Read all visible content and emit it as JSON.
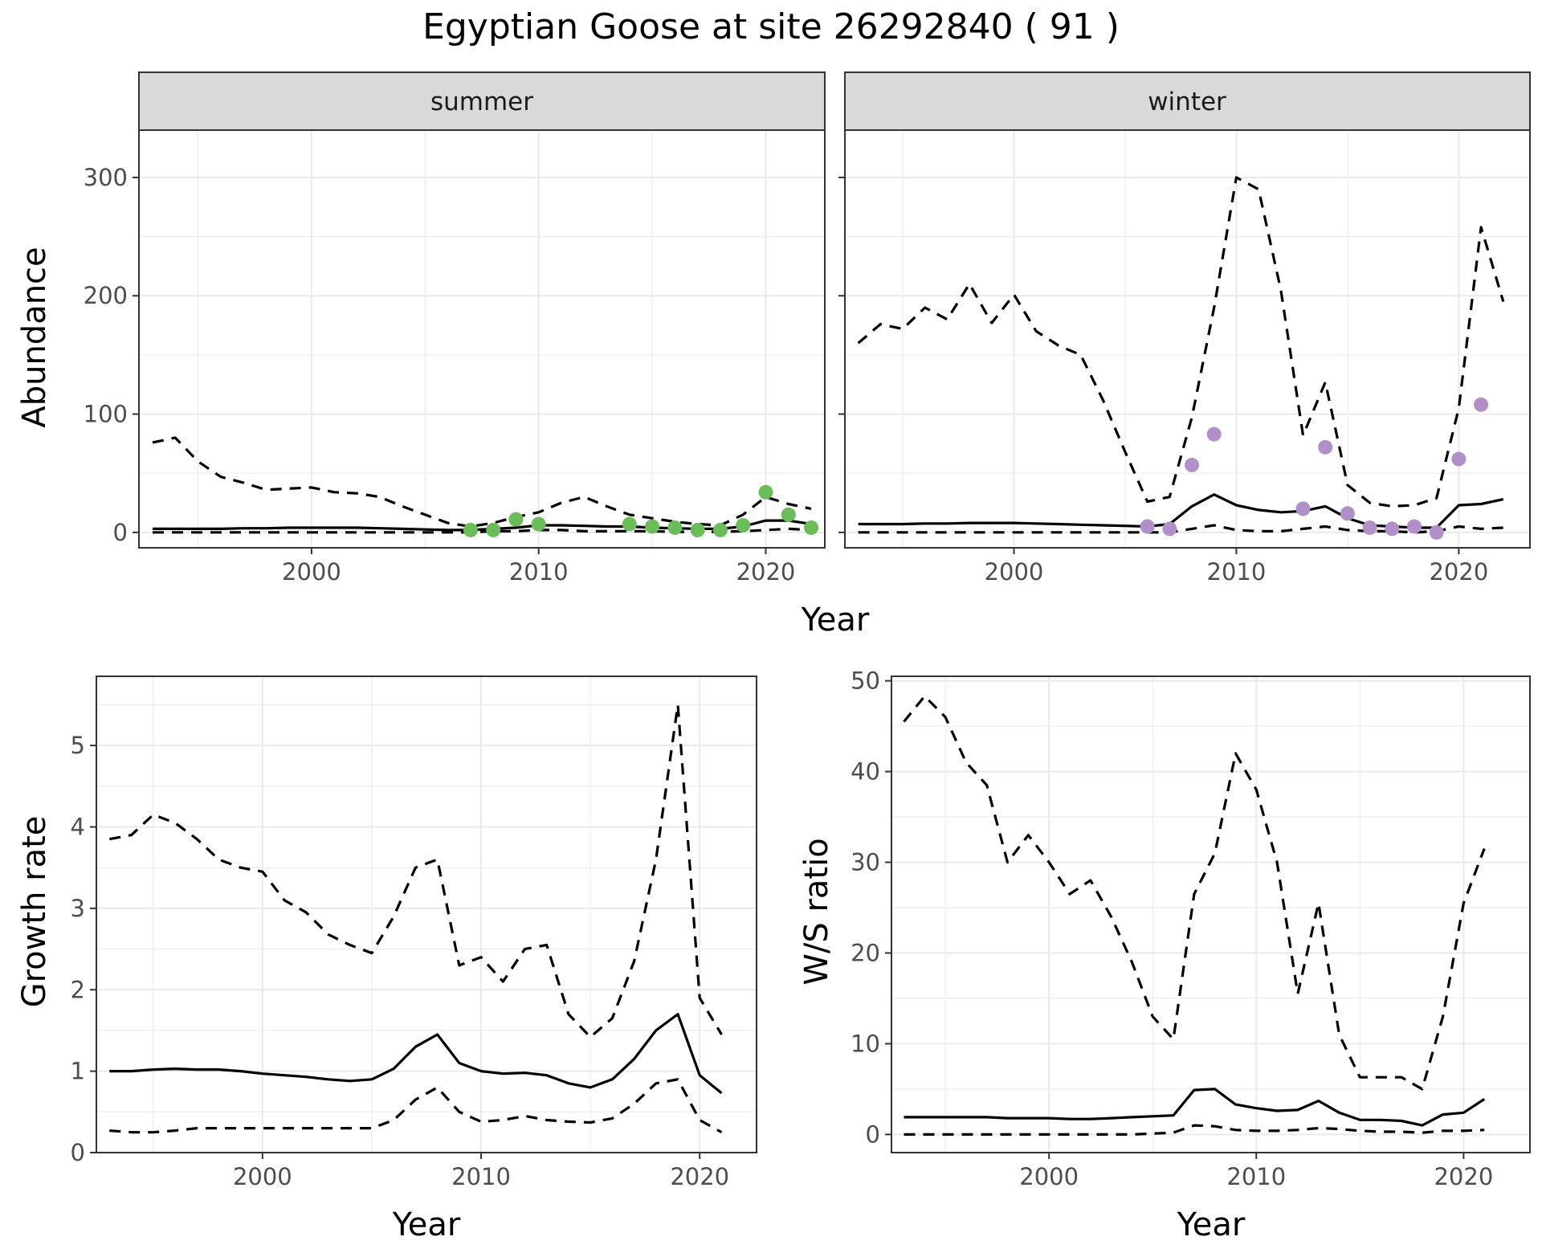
{
  "title": "Egyptian Goose at site 26292840 ( 91 )",
  "chart_data": [
    {
      "type": "line",
      "panel": "summer",
      "strip_label": "summer",
      "xlabel": "",
      "ylabel": "Abundance",
      "xlim": [
        1992.4,
        2022.6
      ],
      "ylim": [
        -13,
        340
      ],
      "xticks": [
        2000,
        2010,
        2020
      ],
      "yticks": [
        0,
        100,
        200,
        300
      ],
      "grid": true,
      "point_color": "#6bbd57",
      "x": [
        1993,
        1994,
        1995,
        1996,
        1997,
        1998,
        1999,
        2000,
        2001,
        2002,
        2003,
        2004,
        2005,
        2006,
        2007,
        2008,
        2009,
        2010,
        2011,
        2012,
        2013,
        2014,
        2015,
        2016,
        2017,
        2018,
        2019,
        2020,
        2021,
        2022
      ],
      "series": [
        {
          "values": [
            3,
            3,
            3,
            3,
            3.5,
            3.5,
            4,
            4,
            4,
            4,
            3.5,
            3,
            2.5,
            2,
            2,
            3,
            4,
            6,
            6,
            5.5,
            5,
            5,
            4,
            3.5,
            3,
            3,
            5,
            10,
            10,
            7
          ]
        },
        {
          "values": [
            76,
            80,
            60,
            47,
            42,
            36,
            37,
            38,
            34,
            33,
            30,
            22,
            15,
            8,
            5,
            8,
            13,
            17,
            25,
            30,
            22,
            15,
            12,
            9,
            7,
            6,
            15,
            30,
            24,
            20
          ]
        },
        {
          "values": [
            0,
            0,
            0,
            0,
            0,
            0,
            0,
            0,
            0,
            0,
            0,
            0,
            0,
            0,
            0,
            1,
            1,
            2,
            2,
            1,
            1,
            1,
            1,
            0.5,
            0.5,
            0.5,
            1,
            2,
            3,
            2
          ]
        }
      ],
      "points": {
        "x": [
          2007,
          2008,
          2009,
          2010,
          2014,
          2015,
          2016,
          2017,
          2018,
          2019,
          2020,
          2021,
          2022
        ],
        "y": [
          2,
          2,
          11,
          7,
          7,
          5,
          4,
          2,
          2,
          6,
          34,
          15,
          4
        ]
      }
    },
    {
      "type": "line",
      "panel": "winter",
      "strip_label": "winter",
      "xlabel": "",
      "ylabel": "",
      "xlim": [
        1992.4,
        2023.2
      ],
      "ylim": [
        -13,
        340
      ],
      "xticks": [
        2000,
        2010,
        2020
      ],
      "yticks": [
        0,
        100,
        200,
        300
      ],
      "grid": true,
      "point_color": "#b18fc8",
      "x": [
        1993,
        1994,
        1995,
        1996,
        1997,
        1998,
        1999,
        2000,
        2001,
        2002,
        2003,
        2004,
        2005,
        2006,
        2007,
        2008,
        2009,
        2010,
        2011,
        2012,
        2013,
        2014,
        2015,
        2016,
        2017,
        2018,
        2019,
        2020,
        2021,
        2022
      ],
      "series": [
        {
          "values": [
            7,
            7,
            7,
            7.5,
            7.5,
            8,
            8,
            8,
            7.5,
            7,
            6.5,
            6,
            5.5,
            5,
            7,
            22,
            32,
            23,
            19,
            17,
            18,
            22,
            12,
            6,
            5,
            4,
            4,
            23,
            24,
            28
          ]
        },
        {
          "values": [
            160,
            176,
            172,
            190,
            180,
            210,
            177,
            201,
            170,
            158,
            150,
            112,
            68,
            26,
            30,
            97,
            190,
            300,
            290,
            205,
            82,
            127,
            40,
            25,
            22,
            23,
            29,
            105,
            258,
            195
          ]
        },
        {
          "values": [
            0,
            0,
            0,
            0,
            0,
            0,
            0,
            0,
            0,
            0,
            0,
            0,
            0,
            0,
            0,
            3,
            6,
            2,
            1,
            1,
            3,
            5,
            2,
            1,
            1,
            0,
            1,
            5,
            3,
            4
          ]
        }
      ],
      "points": {
        "x": [
          2006,
          2007,
          2008,
          2009,
          2013,
          2014,
          2015,
          2016,
          2017,
          2018,
          2019,
          2020,
          2021
        ],
        "y": [
          5,
          3,
          57,
          83,
          20,
          72,
          16,
          4,
          3,
          5,
          0,
          62,
          108
        ]
      }
    },
    {
      "type": "line",
      "panel": "growth",
      "xlabel": "Year",
      "ylabel": "Growth rate",
      "xlim": [
        1992.4,
        2022.6
      ],
      "ylim": [
        0,
        5.85
      ],
      "xticks": [
        2000,
        2010,
        2020
      ],
      "yticks": [
        0,
        1,
        2,
        3,
        4,
        5
      ],
      "grid": true,
      "x": [
        1993,
        1994,
        1995,
        1996,
        1997,
        1998,
        1999,
        2000,
        2001,
        2002,
        2003,
        2004,
        2005,
        2006,
        2007,
        2008,
        2009,
        2010,
        2011,
        2012,
        2013,
        2014,
        2015,
        2016,
        2017,
        2018,
        2019,
        2020,
        2021
      ],
      "series": [
        {
          "values": [
            1.0,
            1.0,
            1.02,
            1.03,
            1.02,
            1.02,
            1.0,
            0.97,
            0.95,
            0.93,
            0.9,
            0.88,
            0.9,
            1.03,
            1.3,
            1.45,
            1.1,
            1.0,
            0.97,
            0.98,
            0.95,
            0.85,
            0.8,
            0.9,
            1.15,
            1.5,
            1.7,
            0.95,
            0.73
          ]
        },
        {
          "values": [
            3.85,
            3.9,
            4.15,
            4.05,
            3.85,
            3.6,
            3.5,
            3.45,
            3.1,
            2.95,
            2.68,
            2.55,
            2.45,
            2.9,
            3.5,
            3.6,
            2.3,
            2.4,
            2.1,
            2.5,
            2.55,
            1.7,
            1.42,
            1.65,
            2.35,
            3.6,
            5.5,
            1.9,
            1.45
          ]
        },
        {
          "values": [
            0.27,
            0.25,
            0.25,
            0.27,
            0.3,
            0.3,
            0.3,
            0.3,
            0.3,
            0.3,
            0.3,
            0.3,
            0.3,
            0.4,
            0.65,
            0.8,
            0.5,
            0.38,
            0.4,
            0.45,
            0.4,
            0.38,
            0.37,
            0.42,
            0.6,
            0.85,
            0.9,
            0.4,
            0.25
          ]
        }
      ]
    },
    {
      "type": "line",
      "panel": "ratio",
      "xlabel": "Year",
      "ylabel": "W/S ratio",
      "xlim": [
        1992.4,
        2023.2
      ],
      "ylim": [
        -2,
        50.5
      ],
      "xticks": [
        2000,
        2010,
        2020
      ],
      "yticks": [
        0,
        10,
        20,
        30,
        40,
        50
      ],
      "grid": true,
      "x": [
        1993,
        1994,
        1995,
        1996,
        1997,
        1998,
        1999,
        2000,
        2001,
        2002,
        2003,
        2004,
        2005,
        2006,
        2007,
        2008,
        2009,
        2010,
        2011,
        2012,
        2013,
        2014,
        2015,
        2016,
        2017,
        2018,
        2019,
        2020,
        2021
      ],
      "series": [
        {
          "values": [
            1.9,
            1.9,
            1.9,
            1.9,
            1.9,
            1.8,
            1.8,
            1.8,
            1.7,
            1.7,
            1.8,
            1.9,
            2.0,
            2.1,
            4.9,
            5.0,
            3.3,
            2.9,
            2.6,
            2.7,
            3.7,
            2.4,
            1.6,
            1.6,
            1.5,
            1.0,
            2.2,
            2.4,
            3.9
          ]
        },
        {
          "values": [
            45.5,
            48.3,
            46,
            41,
            38.5,
            30,
            33,
            30,
            26.5,
            28,
            24,
            19,
            13,
            10.5,
            26.5,
            31,
            42,
            38,
            30,
            15.5,
            25.5,
            11,
            6.3,
            6.3,
            6.3,
            5,
            13,
            25.5,
            31.5
          ]
        },
        {
          "values": [
            0,
            0,
            0,
            0,
            0,
            0,
            0,
            0,
            0,
            0,
            0,
            0,
            0.1,
            0.2,
            1.0,
            0.9,
            0.5,
            0.4,
            0.4,
            0.5,
            0.7,
            0.6,
            0.4,
            0.3,
            0.3,
            0.2,
            0.4,
            0.4,
            0.5
          ]
        }
      ]
    }
  ],
  "labels": {
    "top_xlabel": "Year",
    "growth_xlabel": "Year",
    "ratio_xlabel": "Year",
    "summer_ylabel": "Abundance",
    "growth_ylabel": "Growth rate",
    "ratio_ylabel": "W/S ratio",
    "summer_strip": "summer",
    "winter_strip": "winter"
  }
}
